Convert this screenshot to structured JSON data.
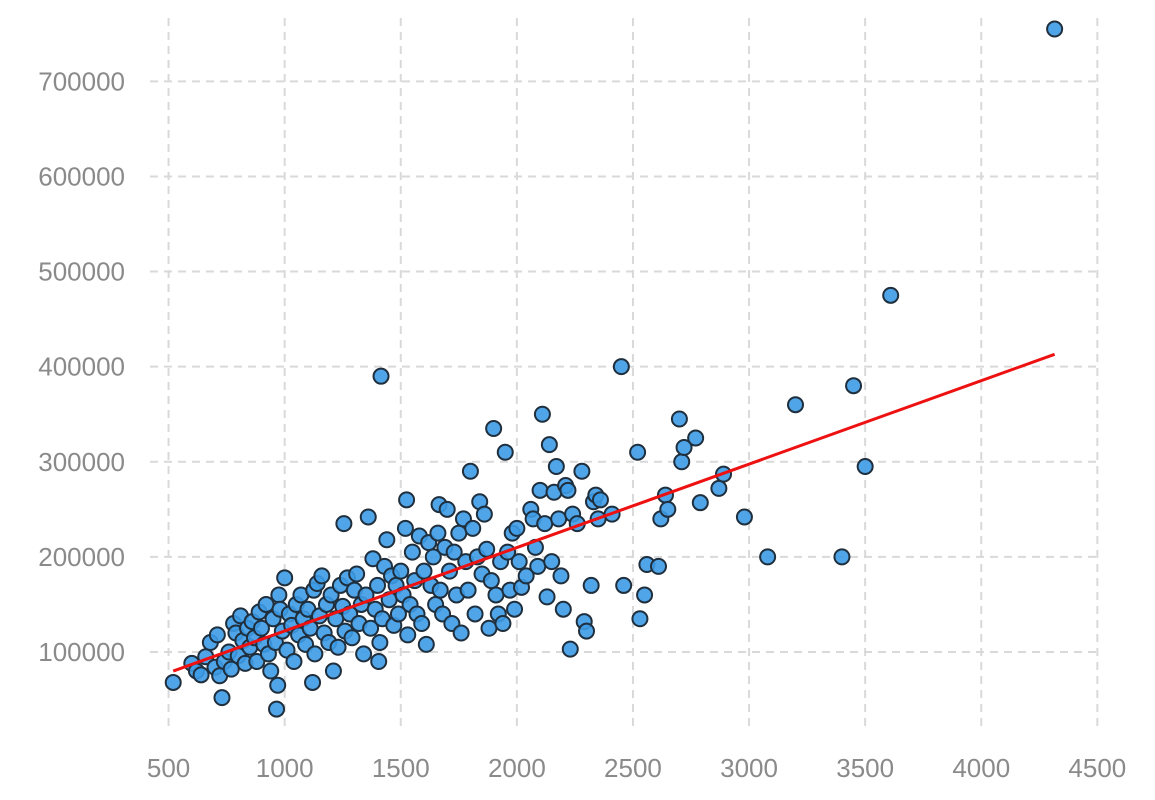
{
  "chart_data": {
    "type": "scatter",
    "title": "",
    "xlabel": "",
    "ylabel": "",
    "xlim": [
      420,
      4520
    ],
    "ylim": [
      18000,
      775000
    ],
    "x_ticks": [
      500,
      1000,
      1500,
      2000,
      2500,
      3000,
      3500,
      4000,
      4500
    ],
    "y_ticks": [
      100000,
      200000,
      300000,
      400000,
      500000,
      600000,
      700000
    ],
    "grid": true,
    "colors": {
      "point_fill": "#3d9be6",
      "point_edge": "#1f2f3d",
      "trend_line": "#ee1111",
      "grid": "#d9d9d9"
    },
    "trend_line": {
      "x": [
        520,
        4316
      ],
      "y": [
        80000,
        413000
      ]
    },
    "points": [
      [
        520,
        68000
      ],
      [
        600,
        88000
      ],
      [
        620,
        80000
      ],
      [
        640,
        76000
      ],
      [
        660,
        95000
      ],
      [
        680,
        110000
      ],
      [
        700,
        84000
      ],
      [
        710,
        118000
      ],
      [
        720,
        75000
      ],
      [
        730,
        52000
      ],
      [
        740,
        90000
      ],
      [
        760,
        100000
      ],
      [
        770,
        82000
      ],
      [
        780,
        130000
      ],
      [
        790,
        120000
      ],
      [
        800,
        96000
      ],
      [
        810,
        138000
      ],
      [
        820,
        112000
      ],
      [
        830,
        88000
      ],
      [
        840,
        125000
      ],
      [
        850,
        105000
      ],
      [
        860,
        132000
      ],
      [
        870,
        115000
      ],
      [
        880,
        90000
      ],
      [
        890,
        142000
      ],
      [
        900,
        125000
      ],
      [
        910,
        108000
      ],
      [
        920,
        150000
      ],
      [
        930,
        98000
      ],
      [
        940,
        80000
      ],
      [
        950,
        135000
      ],
      [
        960,
        110000
      ],
      [
        965,
        40000
      ],
      [
        970,
        65000
      ],
      [
        975,
        160000
      ],
      [
        980,
        145000
      ],
      [
        990,
        122000
      ],
      [
        1000,
        178000
      ],
      [
        1010,
        102000
      ],
      [
        1020,
        140000
      ],
      [
        1030,
        128000
      ],
      [
        1040,
        90000
      ],
      [
        1050,
        150000
      ],
      [
        1060,
        118000
      ],
      [
        1070,
        160000
      ],
      [
        1080,
        135000
      ],
      [
        1090,
        108000
      ],
      [
        1100,
        145000
      ],
      [
        1110,
        125000
      ],
      [
        1120,
        68000
      ],
      [
        1125,
        165000
      ],
      [
        1130,
        98000
      ],
      [
        1140,
        172000
      ],
      [
        1150,
        138000
      ],
      [
        1160,
        180000
      ],
      [
        1170,
        120000
      ],
      [
        1180,
        150000
      ],
      [
        1190,
        110000
      ],
      [
        1200,
        160000
      ],
      [
        1210,
        80000
      ],
      [
        1220,
        135000
      ],
      [
        1230,
        105000
      ],
      [
        1240,
        170000
      ],
      [
        1250,
        148000
      ],
      [
        1255,
        235000
      ],
      [
        1260,
        122000
      ],
      [
        1270,
        178000
      ],
      [
        1280,
        140000
      ],
      [
        1290,
        115000
      ],
      [
        1300,
        165000
      ],
      [
        1310,
        182000
      ],
      [
        1320,
        130000
      ],
      [
        1330,
        150000
      ],
      [
        1340,
        98000
      ],
      [
        1350,
        160000
      ],
      [
        1360,
        242000
      ],
      [
        1370,
        125000
      ],
      [
        1380,
        198000
      ],
      [
        1390,
        145000
      ],
      [
        1400,
        170000
      ],
      [
        1405,
        90000
      ],
      [
        1410,
        110000
      ],
      [
        1415,
        390000
      ],
      [
        1420,
        135000
      ],
      [
        1430,
        190000
      ],
      [
        1440,
        218000
      ],
      [
        1450,
        155000
      ],
      [
        1460,
        180000
      ],
      [
        1470,
        128000
      ],
      [
        1480,
        170000
      ],
      [
        1490,
        140000
      ],
      [
        1500,
        185000
      ],
      [
        1510,
        160000
      ],
      [
        1520,
        230000
      ],
      [
        1525,
        260000
      ],
      [
        1530,
        118000
      ],
      [
        1540,
        150000
      ],
      [
        1550,
        205000
      ],
      [
        1560,
        175000
      ],
      [
        1570,
        140000
      ],
      [
        1580,
        222000
      ],
      [
        1590,
        130000
      ],
      [
        1600,
        185000
      ],
      [
        1610,
        108000
      ],
      [
        1620,
        215000
      ],
      [
        1630,
        170000
      ],
      [
        1640,
        200000
      ],
      [
        1650,
        150000
      ],
      [
        1660,
        225000
      ],
      [
        1665,
        255000
      ],
      [
        1670,
        165000
      ],
      [
        1680,
        140000
      ],
      [
        1690,
        210000
      ],
      [
        1700,
        250000
      ],
      [
        1710,
        185000
      ],
      [
        1720,
        130000
      ],
      [
        1730,
        205000
      ],
      [
        1740,
        160000
      ],
      [
        1750,
        225000
      ],
      [
        1760,
        120000
      ],
      [
        1770,
        240000
      ],
      [
        1780,
        195000
      ],
      [
        1790,
        165000
      ],
      [
        1800,
        290000
      ],
      [
        1810,
        230000
      ],
      [
        1820,
        140000
      ],
      [
        1830,
        200000
      ],
      [
        1840,
        258000
      ],
      [
        1850,
        182000
      ],
      [
        1860,
        245000
      ],
      [
        1870,
        208000
      ],
      [
        1880,
        125000
      ],
      [
        1890,
        175000
      ],
      [
        1900,
        335000
      ],
      [
        1910,
        160000
      ],
      [
        1920,
        140000
      ],
      [
        1930,
        195000
      ],
      [
        1940,
        130000
      ],
      [
        1950,
        310000
      ],
      [
        1960,
        205000
      ],
      [
        1970,
        165000
      ],
      [
        1980,
        225000
      ],
      [
        1990,
        145000
      ],
      [
        2000,
        230000
      ],
      [
        2010,
        195000
      ],
      [
        2020,
        168000
      ],
      [
        2040,
        180000
      ],
      [
        2060,
        250000
      ],
      [
        2070,
        240000
      ],
      [
        2080,
        210000
      ],
      [
        2090,
        190000
      ],
      [
        2100,
        270000
      ],
      [
        2110,
        350000
      ],
      [
        2120,
        235000
      ],
      [
        2130,
        158000
      ],
      [
        2140,
        318000
      ],
      [
        2150,
        195000
      ],
      [
        2160,
        268000
      ],
      [
        2170,
        295000
      ],
      [
        2180,
        240000
      ],
      [
        2190,
        180000
      ],
      [
        2200,
        145000
      ],
      [
        2210,
        275000
      ],
      [
        2220,
        270000
      ],
      [
        2230,
        103000
      ],
      [
        2240,
        245000
      ],
      [
        2260,
        235000
      ],
      [
        2280,
        290000
      ],
      [
        2290,
        132000
      ],
      [
        2300,
        122000
      ],
      [
        2320,
        170000
      ],
      [
        2330,
        258000
      ],
      [
        2340,
        265000
      ],
      [
        2350,
        240000
      ],
      [
        2360,
        260000
      ],
      [
        2410,
        245000
      ],
      [
        2450,
        400000
      ],
      [
        2460,
        170000
      ],
      [
        2520,
        310000
      ],
      [
        2530,
        135000
      ],
      [
        2550,
        160000
      ],
      [
        2560,
        192000
      ],
      [
        2610,
        190000
      ],
      [
        2620,
        240000
      ],
      [
        2640,
        265000
      ],
      [
        2650,
        250000
      ],
      [
        2700,
        345000
      ],
      [
        2710,
        300000
      ],
      [
        2720,
        315000
      ],
      [
        2770,
        325000
      ],
      [
        2790,
        257000
      ],
      [
        2870,
        272000
      ],
      [
        2890,
        287000
      ],
      [
        2980,
        242000
      ],
      [
        3080,
        200000
      ],
      [
        3200,
        360000
      ],
      [
        3400,
        200000
      ],
      [
        3450,
        380000
      ],
      [
        3500,
        295000
      ],
      [
        3610,
        475000
      ],
      [
        4316,
        755000
      ]
    ]
  }
}
